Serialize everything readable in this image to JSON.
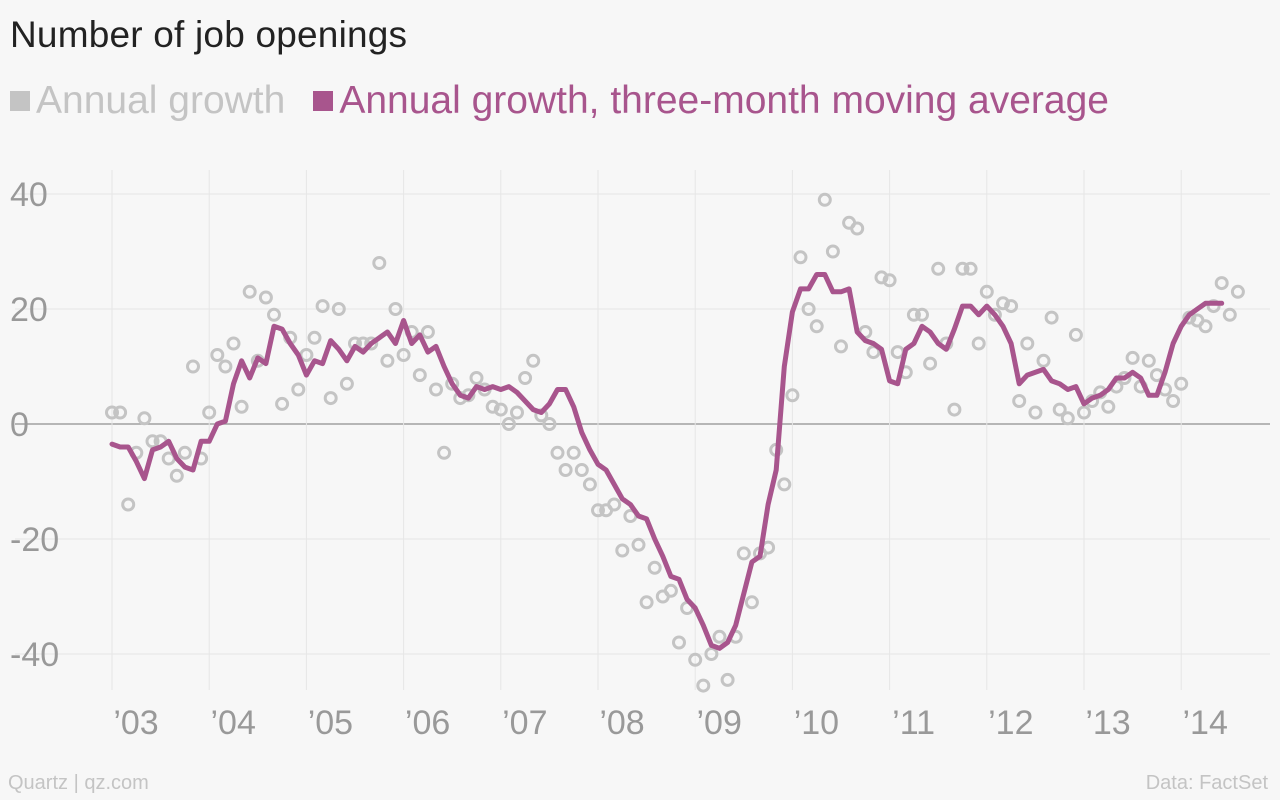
{
  "title": "Number of job openings",
  "legend": [
    {
      "label": "Annual growth",
      "color": "#c4c4c4"
    },
    {
      "label": "Annual growth, three-month moving average",
      "color": "#a8558d"
    }
  ],
  "footer": {
    "source_left": "Quartz | qz.com",
    "source_right": "Data: FactSet"
  },
  "chart_data": {
    "type": "line",
    "title": "Number of job openings",
    "xlabel": "",
    "ylabel": "",
    "x_start": "2003-01",
    "x_end": "2014-09",
    "ylim": [
      -47,
      47
    ],
    "y_ticks": [
      40,
      20,
      0,
      -20,
      -40
    ],
    "y_tick_labels": [
      "40",
      "20",
      "0",
      "-20",
      "-40"
    ],
    "x_ticks": [
      "2003",
      "2004",
      "2005",
      "2006",
      "2007",
      "2008",
      "2009",
      "2010",
      "2011",
      "2012",
      "2013",
      "2014"
    ],
    "x_tick_labels": [
      "’03",
      "’04",
      "’05",
      "’06",
      "’07",
      "’08",
      "’09",
      "’10",
      "’11",
      "’12",
      "’13",
      "’14"
    ],
    "grid": true,
    "legend_position": "top",
    "series": [
      {
        "name": "Annual growth",
        "style": "scatter",
        "values": [
          2,
          2,
          -14,
          -5,
          1,
          -3,
          -3,
          -6,
          -9,
          -5,
          10,
          -6,
          2,
          12,
          10,
          14,
          3,
          23,
          11,
          22,
          19,
          3.5,
          15,
          6,
          12,
          15,
          20.5,
          4.5,
          20,
          7,
          14,
          14,
          14,
          28,
          11,
          20,
          12,
          16,
          8.5,
          16,
          6,
          -5,
          7,
          4.5,
          5,
          8,
          6,
          3,
          2.5,
          0,
          2,
          8,
          11,
          1.5,
          0,
          -5,
          -8,
          -5,
          -8,
          -10.5,
          -15,
          -15,
          -14,
          -22,
          -16,
          -21,
          -31,
          -25,
          -30,
          -29,
          -38,
          -32,
          -41,
          -45.5,
          -40,
          -37,
          -44.5,
          -37,
          -22.5,
          -31,
          -22.5,
          -21.5,
          -4.5,
          -10.5,
          5,
          29,
          20,
          17,
          39,
          30,
          13.5,
          35,
          34,
          16,
          12.5,
          25.5,
          25,
          12.5,
          9,
          19,
          19,
          10.5,
          27,
          14,
          2.5,
          27,
          27,
          14,
          23,
          19,
          21,
          20.5,
          4,
          14,
          2,
          11,
          18.5,
          2.5,
          1,
          15.5,
          2,
          4,
          5.5,
          3,
          6.5,
          8,
          11.5,
          6.5,
          11,
          8.5,
          6,
          4,
          7,
          18.5,
          18,
          17,
          20.5,
          24.5,
          19,
          23
        ]
      },
      {
        "name": "Annual growth, three-month moving average",
        "style": "line",
        "values": [
          -3.5,
          -4,
          -4,
          -6.5,
          -9.5,
          -4.5,
          -4,
          -3,
          -6,
          -7.5,
          -8,
          -3,
          -3,
          0,
          0.5,
          7,
          11,
          8,
          11.5,
          10.5,
          17,
          16.5,
          14,
          12,
          8.5,
          11,
          10.5,
          14.5,
          13,
          11,
          13.5,
          12.5,
          14,
          15,
          16,
          14,
          18,
          14,
          15.5,
          12.5,
          13.5,
          10,
          7,
          5,
          4.5,
          6.5,
          6,
          6.5,
          6,
          6.5,
          5.5,
          4,
          2.5,
          2,
          3.5,
          6,
          6,
          3,
          -1.5,
          -4.5,
          -7,
          -8,
          -10.5,
          -13,
          -14,
          -16,
          -16.5,
          -20,
          -23,
          -26.5,
          -27,
          -30.5,
          -32,
          -35,
          -38.5,
          -39,
          -38,
          -35,
          -29.5,
          -24,
          -23,
          -14,
          -8,
          10,
          19.5,
          23.5,
          23.5,
          26,
          26,
          23,
          23,
          23.5,
          16,
          14.5,
          14,
          13,
          7.5,
          7,
          13,
          14,
          17,
          16,
          14,
          13,
          16.5,
          20.5,
          20.5,
          19,
          20.5,
          19,
          17,
          14,
          7,
          8.5,
          9,
          9.5,
          7.5,
          7,
          6,
          6.5,
          3.5,
          4.5,
          5,
          6,
          8,
          8,
          9,
          8,
          5,
          5,
          9,
          14,
          17,
          19,
          20,
          21,
          21,
          21
        ]
      }
    ]
  }
}
